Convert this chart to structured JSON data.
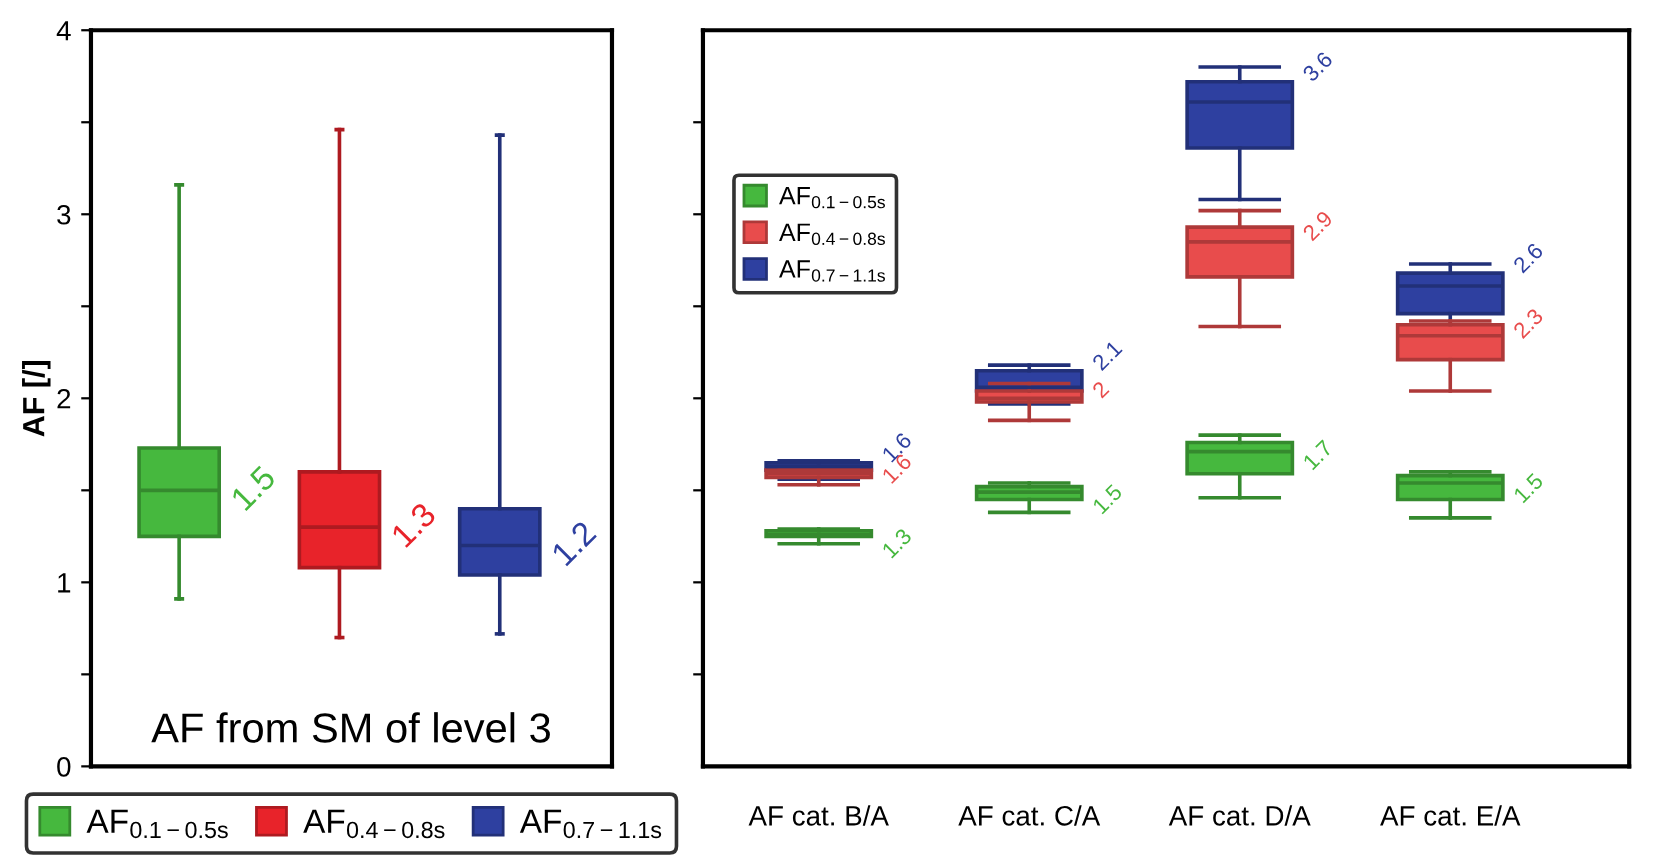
{
  "chart_data": [
    {
      "type": "box",
      "title": "AF from SM of level 3",
      "ylabel": "AF [/]",
      "categories": [
        null,
        null,
        null
      ],
      "ylim": [
        0,
        4
      ],
      "yticks": [
        0,
        {
          "value": 0.5,
          "label": null
        },
        1,
        {
          "value": 1.5,
          "label": null
        },
        2,
        {
          "value": 2.5,
          "label": null
        },
        3,
        {
          "value": 3.5,
          "label": null
        },
        4
      ],
      "tick_labels": "y",
      "legend": "bottom",
      "grid": false,
      "series": [
        {
          "name": "AF$_{0.1−0.5s}$",
          "color": "#46b83e",
          "boxes": [
            {
              "low": 0.91,
              "q1": 1.25,
              "median": 1.5,
              "q3": 1.73,
              "high": 3.16
            },
            null,
            null
          ],
          "value_labels": [
            "1.5",
            null,
            null
          ]
        },
        {
          "name": "AF$_{0.4−0.8s}$",
          "color": "#e8232a",
          "boxes": [
            null,
            {
              "low": 0.7,
              "q1": 1.08,
              "median": 1.3,
              "q3": 1.6,
              "high": 3.46
            },
            null
          ],
          "value_labels": [
            null,
            "1.3",
            null
          ]
        },
        {
          "name": "AF$_{0.7−1.1s}$",
          "color": "#2e40a0",
          "boxes": [
            null,
            null,
            {
              "low": 0.72,
              "q1": 1.04,
              "median": 1.2,
              "q3": 1.4,
              "high": 3.43
            }
          ],
          "value_labels": [
            null,
            null,
            "1.2"
          ]
        }
      ]
    },
    {
      "type": "box",
      "categories": [
        "AF cat. B/A",
        "AF cat. C/A",
        "AF cat. D/A",
        "AF cat. E/A"
      ],
      "ylim": [
        0,
        4
      ],
      "yticks": [
        {
          "value": 0.5,
          "label": null
        },
        {
          "value": 1,
          "label": null
        },
        {
          "value": 1.5,
          "label": null
        },
        {
          "value": 2,
          "label": null
        },
        {
          "value": 2.5,
          "label": null
        },
        {
          "value": 3,
          "label": null
        },
        {
          "value": 3.5,
          "label": null
        }
      ],
      "tick_labels": "x",
      "legend": "top left",
      "grid": false,
      "series": [
        {
          "name": "AF$_{0.1−0.5s}$",
          "color": "#46b83e",
          "boxes": [
            {
              "low": 1.21,
              "q1": 1.25,
              "median": 1.26,
              "q3": 1.28,
              "high": 1.29
            },
            {
              "low": 1.38,
              "q1": 1.45,
              "median": 1.49,
              "q3": 1.52,
              "high": 1.54
            },
            {
              "low": 1.46,
              "q1": 1.59,
              "median": 1.71,
              "q3": 1.76,
              "high": 1.8
            },
            {
              "low": 1.35,
              "q1": 1.45,
              "median": 1.54,
              "q3": 1.58,
              "high": 1.6
            }
          ],
          "value_labels": [
            "1.3",
            "1.5",
            "1.7",
            "1.5"
          ]
        },
        {
          "name": "AF$_{0.4−0.8s}$",
          "color": "#e84c4c",
          "boxes": [
            {
              "low": 1.53,
              "q1": 1.57,
              "median": 1.59,
              "q3": 1.61,
              "high": 1.61
            },
            {
              "low": 1.88,
              "q1": 1.98,
              "median": 2.0,
              "q3": 2.04,
              "high": 2.08
            },
            {
              "low": 2.39,
              "q1": 2.66,
              "median": 2.85,
              "q3": 2.93,
              "high": 3.02
            },
            {
              "low": 2.04,
              "q1": 2.21,
              "median": 2.34,
              "q3": 2.4,
              "high": 2.42
            }
          ],
          "value_labels": [
            "1.6",
            "2",
            "2.9",
            "2.3"
          ]
        },
        {
          "name": "AF$_{0.7−1.1s}$",
          "color": "#2e40a0",
          "boxes": [
            {
              "low": 1.56,
              "q1": 1.61,
              "median": 1.63,
              "q3": 1.65,
              "high": 1.66
            },
            {
              "low": 1.97,
              "q1": 2.04,
              "median": 2.06,
              "q3": 2.15,
              "high": 2.18
            },
            {
              "low": 3.08,
              "q1": 3.36,
              "median": 3.61,
              "q3": 3.72,
              "high": 3.8
            },
            {
              "low": 2.29,
              "q1": 2.46,
              "median": 2.61,
              "q3": 2.68,
              "high": 2.73
            }
          ],
          "value_labels": [
            "1.6",
            "2.1",
            "3.6",
            "2.6"
          ]
        }
      ]
    }
  ]
}
